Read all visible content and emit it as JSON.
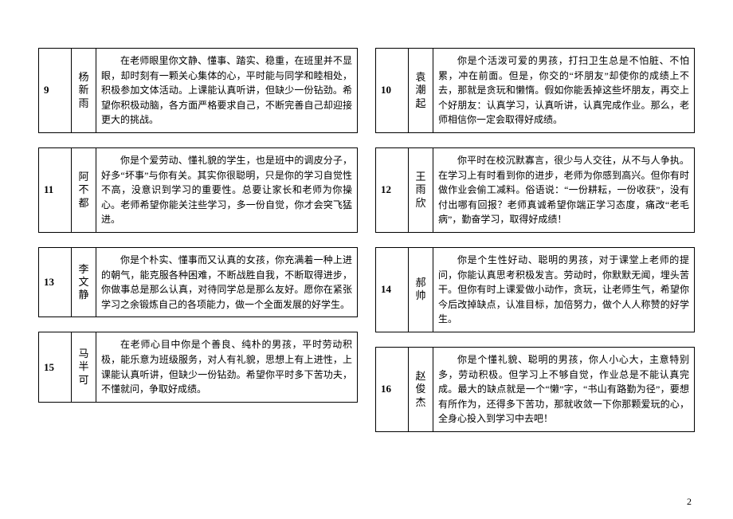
{
  "page_number": "2",
  "left": [
    {
      "num": "9",
      "name": "杨新雨",
      "comment": "在老师眼里你文静、懂事、踏实、稳重，在班里并不显眼，却时刻有一颗关心集体的心，平时能与同学和睦相处，积极参加文体活动。上课能认真听讲，但缺少一份钻劲。希望你积极动脑，各方面严格要求自己，不断完善自己却迎接更大的挑战。"
    },
    {
      "num": "11",
      "name": "阿不都",
      "comment": "你是个爱劳动、懂礼貌的学生，也是班中的调皮分子，好多“坏事”与你有关。其实你很聪明，只是你的学习自觉性不高，没意识到学习的重要性。总要让家长和老师为你操心。老师希望你能关注些学习，多一份自觉，你才会突飞猛进。"
    },
    {
      "num": "13",
      "name": "李文静",
      "comment": "你是个朴实、懂事而又认真的女孩，你充满着一种上进的朝气，能克服各种困难，不断战胜自我，不断取得进步，你做事总是那么认真，对待同学总是那么友好。愿你在紧张学习之余锻炼自己的各项能力，做一个全面发展的好学生。"
    },
    {
      "num": "15",
      "name": "马半可",
      "comment": "在老师心目中你是个善良、纯朴的男孩，平时劳动积极，能乐意为班级服务，对人有礼貌，思想上有上进性，上课能认真听讲，但缺少一份钻劲。希望你平时多下苦功夫，不懂就问，争取好成绩。"
    }
  ],
  "right": [
    {
      "num": "10",
      "name": "袁潮起",
      "comment": "你是个活泼可爱的男孩，打扫卫生总是不怕脏、不怕累，冲在前面。但是，你交的“坏朋友”却使你的成绩上不去，那就是贪玩和懒惰。假如你能丢掉这些坏朋友，再交上个好朋友：认真学习，认真听讲，认真完成作业。那么，老师相信你一定会取得好成绩。"
    },
    {
      "num": "12",
      "name": "王雨欣",
      "comment": "你平时在校沉默寡言，很少与人交往，从不与人争执。在学习上有时看到你的进步，老师为你感到高兴。但你有时做作业会偷工减料。俗语说：“一份耕耘，一份收获”，没有付出哪有回报？老师真诚希望你端正学习态度，痛改“老毛病”，勤奋学习，取得好成绩！"
    },
    {
      "num": "14",
      "name": "郝帅",
      "comment": "你是个生性好动、聪明的男孩，对于课堂上老师的提问，你能认真思考积极发言。劳动时，你默默无闻，埋头苦干。但你有时上课爱做小动作，贪玩，让老师生气，希望你今后改掉缺点，认准目标，加倍努力，做个人人称赞的好学生。"
    },
    {
      "num": "16",
      "name": "赵俊杰",
      "comment": "你是个懂礼貌、聪明的男孩，你人小心大，主意特别多，劳动积极。但学习上不够自觉，作业总是不能认真完成。最大的缺点就是一个“懒”字，“书山有路勤为径”，要想有所作为，还得多下苦功，那就收敛一下你那颗爱玩的心，全身心投入到学习中去吧！"
    }
  ]
}
